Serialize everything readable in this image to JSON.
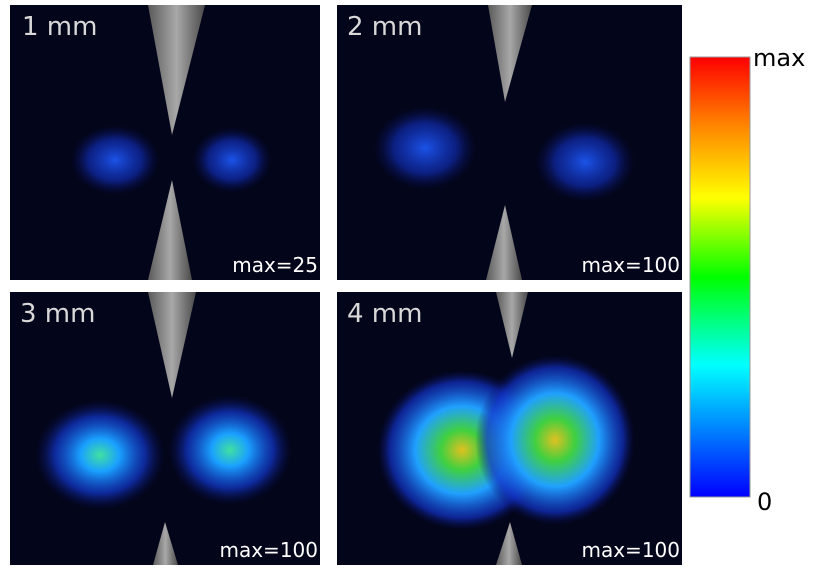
{
  "panels": [
    {
      "label": "1 mm",
      "max_label": "max=25"
    },
    {
      "label": "2 mm",
      "max_label": "max=100"
    },
    {
      "label": "3 mm",
      "max_label": "max=100"
    },
    {
      "label": "4 mm",
      "max_label": "max=100"
    }
  ],
  "colorbar": {
    "top_label": "max",
    "bottom_label": "0"
  }
}
